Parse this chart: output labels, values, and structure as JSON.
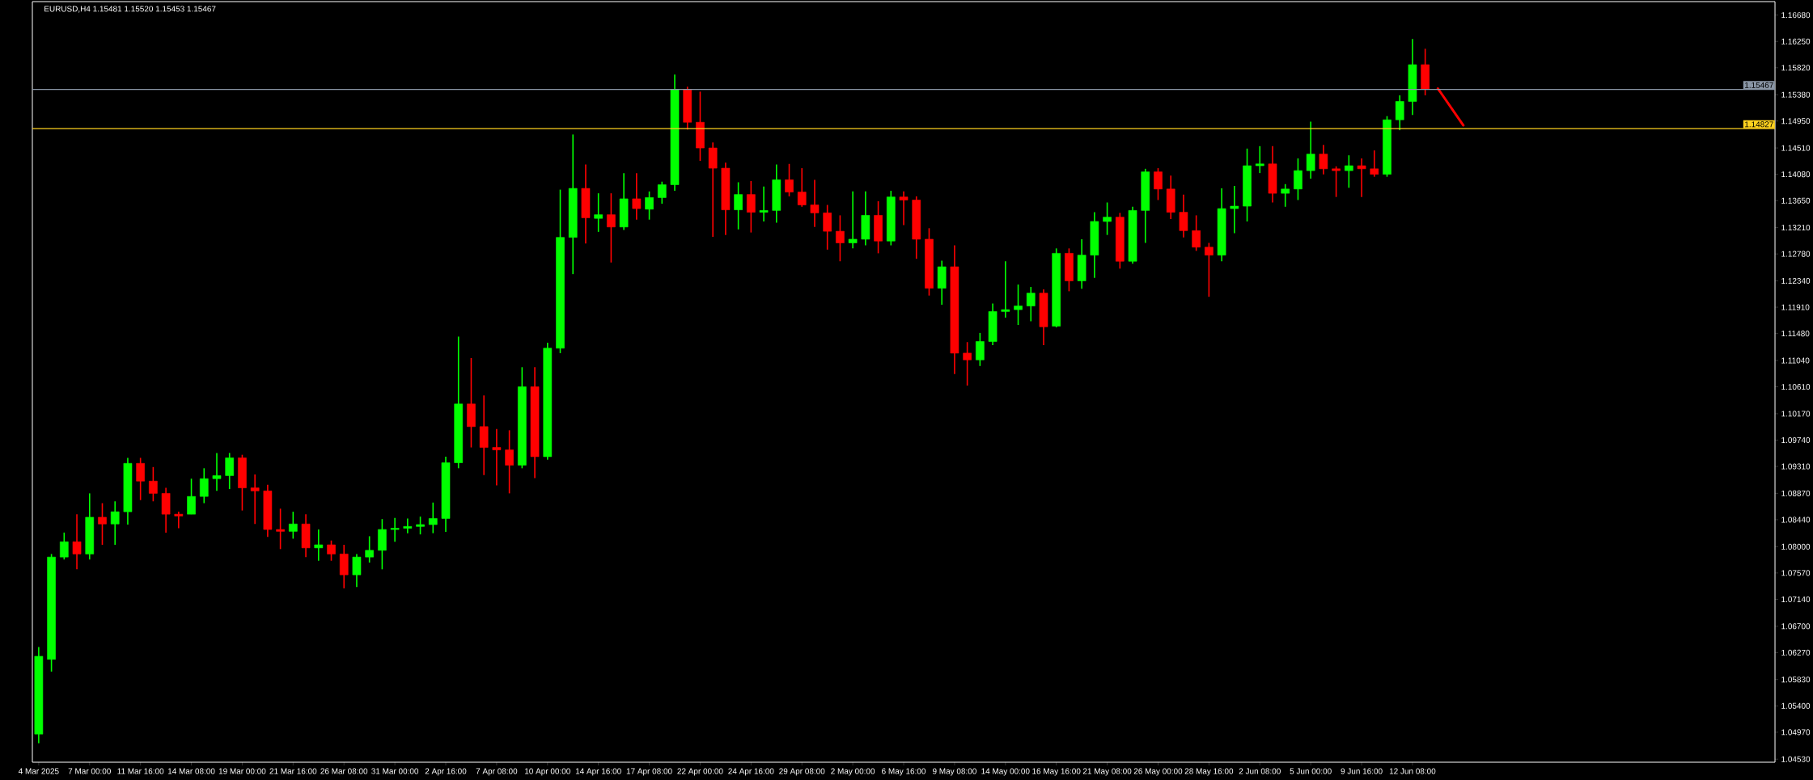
{
  "chart_data": {
    "type": "candlestick",
    "title": "EURUSD,H4  1.15481 1.15520 1.15453 1.15467",
    "categories": [
      "4 Mar 2025",
      null,
      null,
      null,
      "7 Mar 00:00",
      null,
      null,
      null,
      "11 Mar 16:00",
      null,
      null,
      null,
      "14 Mar 08:00",
      null,
      null,
      null,
      "19 Mar 00:00",
      null,
      null,
      null,
      "21 Mar 16:00",
      null,
      null,
      null,
      "26 Mar 08:00",
      null,
      null,
      null,
      "31 Mar 00:00",
      null,
      null,
      null,
      "2 Apr 16:00",
      null,
      null,
      null,
      "7 Apr 08:00",
      null,
      null,
      null,
      "10 Apr 00:00",
      null,
      null,
      null,
      "14 Apr 16:00",
      null,
      null,
      null,
      "17 Apr 08:00",
      null,
      null,
      null,
      "22 Apr 00:00",
      null,
      null,
      null,
      "24 Apr 16:00",
      null,
      null,
      null,
      "29 Apr 08:00",
      null,
      null,
      null,
      "2 May 00:00",
      null,
      null,
      null,
      "6 May 16:00",
      null,
      null,
      null,
      "9 May 08:00",
      null,
      null,
      null,
      "14 May 00:00",
      null,
      null,
      null,
      "16 May 16:00",
      null,
      null,
      null,
      "21 May 08:00",
      null,
      null,
      null,
      "26 May 00:00",
      null,
      null,
      null,
      "28 May 16:00",
      null,
      null,
      null,
      "2 Jun 08:00",
      null,
      null,
      null,
      "5 Jun 00:00",
      null,
      null,
      null,
      "9 Jun 16:00",
      null,
      null,
      null,
      "12 Jun 08:00",
      null,
      null,
      null,
      null,
      null,
      null,
      null,
      null,
      null,
      null,
      null,
      null,
      null,
      null,
      null,
      null,
      null,
      null,
      null,
      null,
      null,
      null,
      null,
      null,
      null,
      null,
      null,
      null
    ],
    "ohlc": [
      [
        1.0494,
        1.0636,
        1.0479,
        1.0621
      ],
      [
        1.0616,
        1.0788,
        1.0596,
        1.0783
      ],
      [
        1.0783,
        1.0823,
        1.0779,
        1.0808
      ],
      [
        1.0808,
        1.0853,
        1.0763,
        1.0788
      ],
      [
        1.0788,
        1.0887,
        1.0779,
        1.0848
      ],
      [
        1.0848,
        1.0871,
        1.0803,
        1.0837
      ],
      [
        1.0837,
        1.0874,
        1.0803,
        1.0857
      ],
      [
        1.0857,
        1.0945,
        1.0836,
        1.0936
      ],
      [
        1.0936,
        1.0945,
        1.0876,
        1.0907
      ],
      [
        1.0907,
        1.093,
        1.0874,
        1.0887
      ],
      [
        1.0887,
        1.0896,
        1.0823,
        1.0853
      ],
      [
        1.0853,
        1.0857,
        1.083,
        1.085
      ],
      [
        1.0853,
        1.0911,
        1.0853,
        1.0882
      ],
      [
        1.0882,
        1.0928,
        1.0871,
        1.0911
      ],
      [
        1.0911,
        1.0953,
        1.0891,
        1.0916
      ],
      [
        1.0916,
        1.0953,
        1.0894,
        1.0945
      ],
      [
        1.0945,
        1.095,
        1.0859,
        1.0896
      ],
      [
        1.0896,
        1.0918,
        1.0837,
        1.0891
      ],
      [
        1.0891,
        1.0901,
        1.0816,
        1.0828
      ],
      [
        1.0828,
        1.0862,
        1.0796,
        1.0825
      ],
      [
        1.0825,
        1.0857,
        1.0813,
        1.0837
      ],
      [
        1.0837,
        1.0853,
        1.0783,
        1.0798
      ],
      [
        1.0798,
        1.0828,
        1.0777,
        1.0803
      ],
      [
        1.0803,
        1.081,
        1.0777,
        1.0788
      ],
      [
        1.0788,
        1.0803,
        1.0732,
        1.0754
      ],
      [
        1.0754,
        1.0788,
        1.0734,
        1.0783
      ],
      [
        1.0783,
        1.0817,
        1.0774,
        1.0794
      ],
      [
        1.0794,
        1.0845,
        1.0763,
        1.0828
      ],
      [
        1.0828,
        1.0847,
        1.0808,
        1.083
      ],
      [
        1.083,
        1.0846,
        1.0822,
        1.0833
      ],
      [
        1.0833,
        1.0849,
        1.082,
        1.0836
      ],
      [
        1.0836,
        1.0872,
        1.0822,
        1.0846
      ],
      [
        1.0846,
        1.0947,
        1.0824,
        1.0937
      ],
      [
        1.0937,
        1.1143,
        1.0928,
        1.1033
      ],
      [
        1.1033,
        1.1108,
        1.0962,
        1.0996
      ],
      [
        1.0996,
        1.1047,
        1.0917,
        1.0962
      ],
      [
        1.0962,
        1.0992,
        1.09,
        1.0958
      ],
      [
        1.0958,
        1.099,
        1.0887,
        1.0933
      ],
      [
        1.0933,
        1.1093,
        1.0928,
        1.1061
      ],
      [
        1.1061,
        1.1093,
        1.0912,
        1.0947
      ],
      [
        1.0947,
        1.1133,
        1.0942,
        1.1124
      ],
      [
        1.1124,
        1.1383,
        1.1116,
        1.1305
      ],
      [
        1.1305,
        1.1473,
        1.1245,
        1.1385
      ],
      [
        1.1385,
        1.1424,
        1.1295,
        1.1337
      ],
      [
        1.1336,
        1.1377,
        1.1314,
        1.1342
      ],
      [
        1.1342,
        1.1377,
        1.1264,
        1.1322
      ],
      [
        1.1322,
        1.141,
        1.1317,
        1.1368
      ],
      [
        1.1368,
        1.141,
        1.1334,
        1.1352
      ],
      [
        1.1351,
        1.138,
        1.1334,
        1.137
      ],
      [
        1.137,
        1.1396,
        1.136,
        1.1391
      ],
      [
        1.1391,
        1.1571,
        1.1381,
        1.1546
      ],
      [
        1.1546,
        1.1551,
        1.1481,
        1.1493
      ],
      [
        1.1493,
        1.1543,
        1.143,
        1.1451
      ],
      [
        1.1451,
        1.146,
        1.1306,
        1.1418
      ],
      [
        1.1418,
        1.1427,
        1.1309,
        1.135
      ],
      [
        1.135,
        1.1395,
        1.1318,
        1.1375
      ],
      [
        1.1375,
        1.1397,
        1.1313,
        1.1346
      ],
      [
        1.1346,
        1.1388,
        1.1331,
        1.1349
      ],
      [
        1.1349,
        1.1424,
        1.1329,
        1.1399
      ],
      [
        1.1399,
        1.1425,
        1.1372,
        1.1379
      ],
      [
        1.1379,
        1.1418,
        1.1355,
        1.1358
      ],
      [
        1.1358,
        1.1399,
        1.1322,
        1.1345
      ],
      [
        1.1345,
        1.1358,
        1.1285,
        1.1315
      ],
      [
        1.1315,
        1.1341,
        1.1266,
        1.1296
      ],
      [
        1.1296,
        1.138,
        1.1287,
        1.1302
      ],
      [
        1.1302,
        1.138,
        1.1292,
        1.1341
      ],
      [
        1.1341,
        1.1364,
        1.1279,
        1.1299
      ],
      [
        1.1299,
        1.1381,
        1.1292,
        1.1371
      ],
      [
        1.1371,
        1.138,
        1.1325,
        1.1366
      ],
      [
        1.1366,
        1.1372,
        1.127,
        1.1302
      ],
      [
        1.1302,
        1.132,
        1.121,
        1.1222
      ],
      [
        1.1222,
        1.1267,
        1.1195,
        1.1257
      ],
      [
        1.1257,
        1.1292,
        1.1082,
        1.1116
      ],
      [
        1.1116,
        1.1134,
        1.1063,
        1.1105
      ],
      [
        1.1105,
        1.1149,
        1.1095,
        1.1135
      ],
      [
        1.1135,
        1.1197,
        1.1129,
        1.1184
      ],
      [
        1.1184,
        1.1266,
        1.1174,
        1.1187
      ],
      [
        1.1187,
        1.1228,
        1.1162,
        1.1193
      ],
      [
        1.1193,
        1.1224,
        1.1168,
        1.1214
      ],
      [
        1.1214,
        1.122,
        1.1129,
        1.1159
      ],
      [
        1.116,
        1.1287,
        1.1158,
        1.1279
      ],
      [
        1.1279,
        1.1287,
        1.1217,
        1.1234
      ],
      [
        1.1234,
        1.1302,
        1.1221,
        1.1276
      ],
      [
        1.1276,
        1.1346,
        1.1239,
        1.1331
      ],
      [
        1.1331,
        1.1362,
        1.1309,
        1.1338
      ],
      [
        1.1338,
        1.1345,
        1.1254,
        1.1266
      ],
      [
        1.1266,
        1.1355,
        1.1262,
        1.1349
      ],
      [
        1.1349,
        1.1417,
        1.1296,
        1.1412
      ],
      [
        1.1412,
        1.1418,
        1.1366,
        1.1384
      ],
      [
        1.1384,
        1.1406,
        1.1335,
        1.1346
      ],
      [
        1.1346,
        1.1375,
        1.1305,
        1.1316
      ],
      [
        1.1316,
        1.1341,
        1.1283,
        1.1289
      ],
      [
        1.1289,
        1.1296,
        1.1208,
        1.1276
      ],
      [
        1.1276,
        1.1385,
        1.1266,
        1.1352
      ],
      [
        1.1352,
        1.1389,
        1.1312,
        1.1356
      ],
      [
        1.1356,
        1.145,
        1.1331,
        1.1422
      ],
      [
        1.1422,
        1.1454,
        1.141,
        1.1425
      ],
      [
        1.1425,
        1.1454,
        1.1362,
        1.1377
      ],
      [
        1.1377,
        1.1392,
        1.1355,
        1.1384
      ],
      [
        1.1384,
        1.1434,
        1.1366,
        1.1414
      ],
      [
        1.1414,
        1.1494,
        1.1401,
        1.1441
      ],
      [
        1.1441,
        1.1456,
        1.1408,
        1.1417
      ],
      [
        1.1417,
        1.1421,
        1.1371,
        1.1414
      ],
      [
        1.1414,
        1.1439,
        1.1386,
        1.1422
      ],
      [
        1.1422,
        1.1434,
        1.1371,
        1.1417
      ],
      [
        1.1417,
        1.1447,
        1.1404,
        1.1408
      ],
      [
        1.1408,
        1.1503,
        1.1404,
        1.1497
      ],
      [
        1.1497,
        1.1537,
        1.148,
        1.1527
      ],
      [
        1.1527,
        1.1629,
        1.1505,
        1.1587
      ],
      [
        1.1587,
        1.1613,
        1.1537,
        1.1547
      ],
      null,
      null,
      null,
      null,
      null,
      null,
      null,
      null,
      null,
      null,
      null,
      null,
      null,
      null,
      null,
      null,
      null,
      null,
      null,
      null,
      null,
      null,
      null,
      null,
      null,
      null,
      null
    ],
    "colors": [
      "#00ff00",
      "#00ff00",
      "#00ff00",
      "#ff0000",
      "#00ff00",
      "#ff0000",
      "#00ff00",
      "#00ff00",
      "#ff0000",
      "#ff0000",
      "#ff0000",
      "#ff0000",
      "#00ff00",
      "#00ff00",
      "#00ff00",
      "#00ff00",
      "#ff0000",
      "#ff0000",
      "#ff0000",
      "#ff0000",
      "#00ff00",
      "#ff0000",
      "#00ff00",
      "#ff0000",
      "#ff0000",
      "#00ff00",
      "#00ff00",
      "#00ff00",
      "#00ff00",
      "#00ff00",
      "#00ff00",
      "#00ff00",
      "#00ff00",
      "#00ff00",
      "#ff0000",
      "#ff0000",
      "#ff0000",
      "#ff0000",
      "#00ff00",
      "#ff0000",
      "#00ff00",
      "#00ff00",
      "#00ff00",
      "#ff0000",
      "#00ff00",
      "#ff0000",
      "#00ff00",
      "#ff0000",
      "#00ff00",
      "#00ff00",
      "#00ff00",
      "#ff0000",
      "#ff0000",
      "#ff0000",
      "#ff0000",
      "#00ff00",
      "#ff0000",
      "#00ff00",
      "#00ff00",
      "#ff0000",
      "#ff0000",
      "#ff0000",
      "#ff0000",
      "#ff0000",
      "#00ff00",
      "#00ff00",
      "#ff0000",
      "#00ff00",
      "#ff0000",
      "#ff0000",
      "#ff0000",
      "#00ff00",
      "#ff0000",
      "#ff0000",
      "#00ff00",
      "#00ff00",
      "#00ff00",
      "#00ff00",
      "#00ff00",
      "#ff0000",
      "#00ff00",
      "#ff0000",
      "#00ff00",
      "#00ff00",
      "#00ff00",
      "#ff0000",
      "#00ff00",
      "#00ff00",
      "#ff0000",
      "#ff0000",
      "#ff0000",
      "#ff0000",
      "#ff0000",
      "#00ff00",
      "#00ff00",
      "#00ff00",
      "#00ff00",
      "#ff0000",
      "#00ff00",
      "#00ff00",
      "#00ff00",
      "#ff0000",
      "#ff0000",
      "#00ff00",
      "#ff0000",
      "#ff0000",
      "#00ff00",
      "#00ff00",
      "#00ff00",
      "#ff0000",
      null,
      null,
      null,
      null,
      null,
      null,
      null,
      null,
      null,
      null,
      null,
      null,
      null,
      null,
      null,
      null,
      null,
      null,
      null,
      null,
      null,
      null,
      null,
      null,
      null,
      null,
      null
    ],
    "series": [
      {
        "type": "line",
        "color": "#ff0000",
        "values": [
          null,
          null,
          null,
          null,
          null,
          null,
          null,
          null,
          null,
          null,
          null,
          null,
          null,
          null,
          null,
          null,
          null,
          null,
          null,
          null,
          null,
          null,
          null,
          null,
          null,
          null,
          null,
          null,
          null,
          null,
          null,
          null,
          null,
          null,
          null,
          null,
          null,
          null,
          null,
          null,
          null,
          null,
          null,
          null,
          null,
          null,
          null,
          null,
          null,
          null,
          null,
          null,
          null,
          null,
          null,
          null,
          null,
          null,
          null,
          null,
          null,
          null,
          null,
          null,
          null,
          null,
          null,
          null,
          null,
          null,
          null,
          null,
          null,
          null,
          null,
          null,
          null,
          null,
          null,
          null,
          null,
          null,
          null,
          null,
          null,
          null,
          null,
          null,
          null,
          null,
          null,
          null,
          null,
          null,
          null,
          null,
          null,
          null,
          null,
          null,
          null,
          null,
          null,
          null,
          null,
          null,
          null,
          null,
          null,
          null,
          1.1548,
          null,
          1.1488,
          null,
          null,
          null,
          null,
          null,
          null,
          null,
          null,
          null,
          null,
          null,
          null,
          null,
          null,
          null,
          null,
          null,
          null,
          null,
          null,
          null,
          null,
          null,
          null
        ]
      }
    ],
    "ylim": [
      1.0448,
      1.169
    ],
    "yticks": [
      {
        "value": 1.0453,
        "label": "1.04530"
      },
      {
        "value": 1.0497,
        "label": "1.04970"
      },
      {
        "value": 1.054,
        "label": "1.05400"
      },
      {
        "value": 1.0583,
        "label": "1.05830"
      },
      {
        "value": 1.0627,
        "label": "1.06270"
      },
      {
        "value": 1.067,
        "label": "1.06700"
      },
      {
        "value": 1.0714,
        "label": "1.07140"
      },
      {
        "value": 1.0757,
        "label": "1.07570"
      },
      {
        "value": 1.08,
        "label": "1.08000"
      },
      {
        "value": 1.0844,
        "label": "1.08440"
      },
      {
        "value": 1.0887,
        "label": "1.08870"
      },
      {
        "value": 1.0931,
        "label": "1.09310"
      },
      {
        "value": 1.0974,
        "label": "1.09740"
      },
      {
        "value": 1.1017,
        "label": "1.10170"
      },
      {
        "value": 1.1061,
        "label": "1.10610"
      },
      {
        "value": 1.1104,
        "label": "1.11040"
      },
      {
        "value": 1.1148,
        "label": "1.11480"
      },
      {
        "value": 1.1191,
        "label": "1.11910"
      },
      {
        "value": 1.1234,
        "label": "1.12340"
      },
      {
        "value": 1.1278,
        "label": "1.12780"
      },
      {
        "value": 1.1321,
        "label": "1.13210"
      },
      {
        "value": 1.1365,
        "label": "1.13650"
      },
      {
        "value": 1.1408,
        "label": "1.14080"
      },
      {
        "value": 1.1451,
        "label": "1.14510"
      },
      {
        "value": 1.1495,
        "label": "1.14950"
      },
      {
        "value": 1.1538,
        "label": "1.15380"
      },
      {
        "value": 1.1582,
        "label": "1.15820"
      },
      {
        "value": 1.1625,
        "label": "1.16250"
      },
      {
        "value": 1.1668,
        "label": "1.16680"
      }
    ],
    "ref_lines": [
      {
        "axis": "y",
        "value": 1.15467,
        "label": "1.15467",
        "color": "#8a96a6"
      },
      {
        "axis": "y",
        "value": 1.14827,
        "label": "1.14827",
        "color": "#ffd21f"
      }
    ]
  }
}
